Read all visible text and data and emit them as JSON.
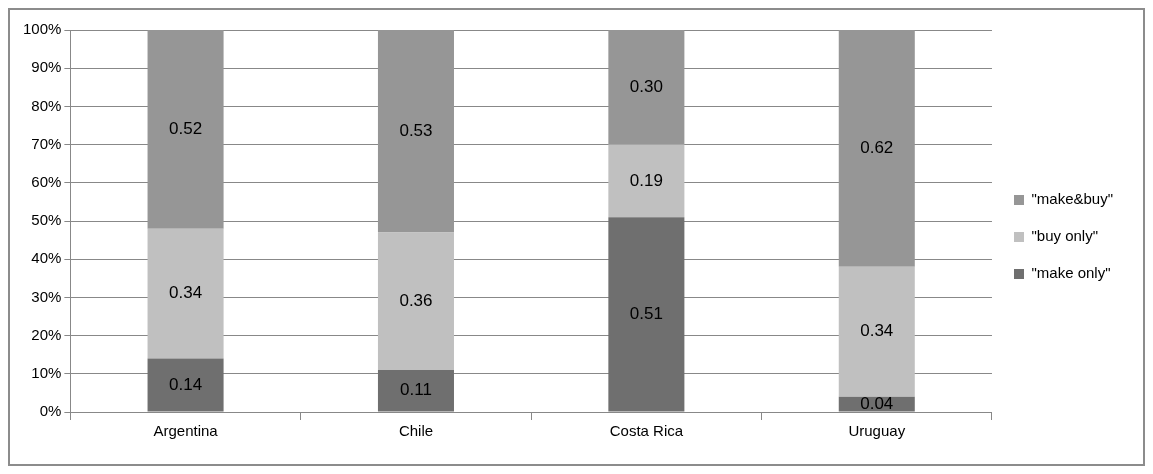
{
  "chart_data": {
    "type": "bar",
    "stacked": true,
    "categories": [
      "Argentina",
      "Chile",
      "Costa Rica",
      "Uruguay"
    ],
    "series": [
      {
        "name": "\"make only\"",
        "color": "#6f6f6f",
        "values": [
          0.14,
          0.11,
          0.51,
          0.04
        ],
        "value_labels": [
          "0.14",
          "0.11",
          "0.51",
          "0.04"
        ]
      },
      {
        "name": "\"buy only\"",
        "color": "#c0c0c0",
        "values": [
          0.34,
          0.36,
          0.19,
          0.34
        ],
        "value_labels": [
          "0.34",
          "0.36",
          "0.19",
          "0.34"
        ]
      },
      {
        "name": "\"make&buy\"",
        "color": "#969696",
        "values": [
          0.52,
          0.53,
          0.3,
          0.62
        ],
        "value_labels": [
          "0.52",
          "0.53",
          "0.30",
          "0.62"
        ]
      }
    ],
    "ylim": [
      0,
      1
    ],
    "yticks": [
      {
        "value": 0,
        "label": "0%"
      },
      {
        "value": 0.1,
        "label": "10%"
      },
      {
        "value": 0.2,
        "label": "20%"
      },
      {
        "value": 0.3,
        "label": "30%"
      },
      {
        "value": 0.4,
        "label": "40%"
      },
      {
        "value": 0.5,
        "label": "50%"
      },
      {
        "value": 0.6,
        "label": "60%"
      },
      {
        "value": 0.7,
        "label": "70%"
      },
      {
        "value": 0.8,
        "label": "80%"
      },
      {
        "value": 0.9,
        "label": "90%"
      },
      {
        "value": 1,
        "label": "100%"
      }
    ],
    "grid": "y",
    "legend": "right"
  }
}
